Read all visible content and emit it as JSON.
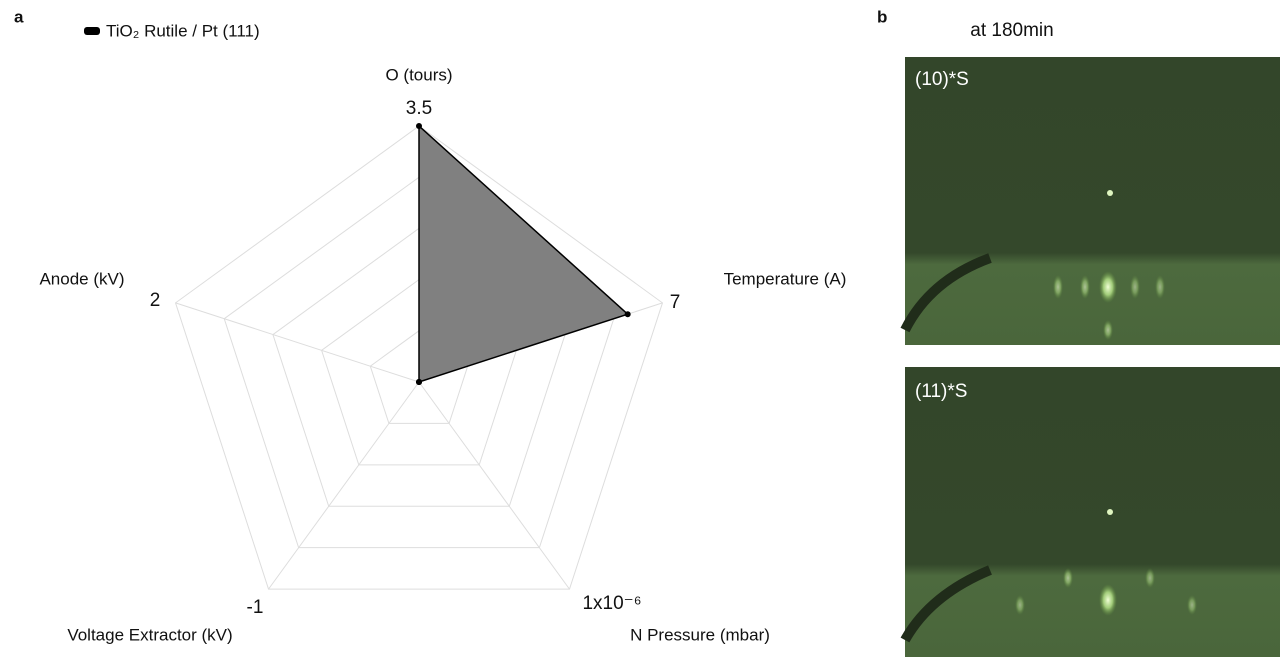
{
  "chart_data": {
    "type": "radar",
    "panel_label": "a",
    "axes": [
      {
        "name": "O (tours)",
        "max": 3.5
      },
      {
        "name": "Temperature (A)",
        "max": 7
      },
      {
        "name": "N Pressure (mbar)",
        "max": {
          "value": 1e-06,
          "label": "1x10⁻⁶"
        }
      },
      {
        "name": "Voltage Extractor (kV)",
        "max": -1
      },
      {
        "name": "Anode (kV)",
        "max": 2
      }
    ],
    "series": [
      {
        "name": "TiO₂ Rutile / Pt (111)",
        "color": "#808080",
        "values": [
          3.5,
          6,
          0,
          0,
          0
        ]
      }
    ],
    "grid": true
  },
  "images": {
    "panel_label": "b",
    "title": "at 180min",
    "panels": [
      {
        "label": "(10)*S"
      },
      {
        "label": "(11)*S"
      }
    ]
  }
}
